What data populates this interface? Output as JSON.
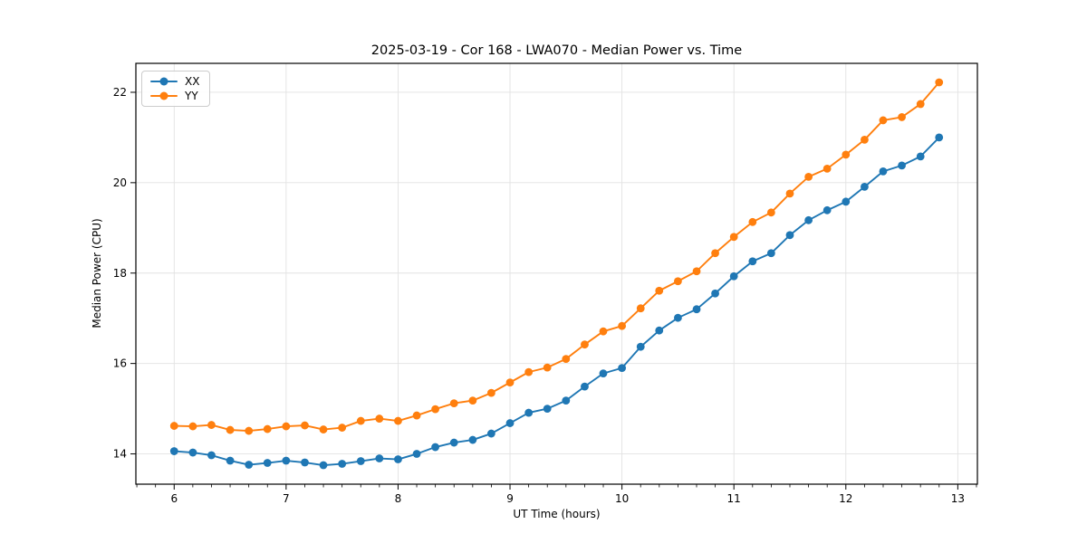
{
  "chart_data": {
    "type": "line",
    "title": "2025-03-19 - Cor 168 - LWA070 - Median Power vs. Time",
    "xlabel": "UT Time (hours)",
    "ylabel": "Median Power (CPU)",
    "xlim": [
      5.658,
      13.175
    ],
    "ylim": [
      13.33,
      22.64
    ],
    "x_major_ticks": [
      6,
      7,
      8,
      9,
      10,
      11,
      12,
      13
    ],
    "x_minor_tick_step": 0.1667,
    "y_major_ticks": [
      14,
      16,
      18,
      20,
      22
    ],
    "grid": true,
    "grid_color": "#e2e2e2",
    "spine_color": "#000000",
    "legend_position": "upper left",
    "marker": "circle",
    "x": [
      6.0,
      6.167,
      6.333,
      6.5,
      6.667,
      6.833,
      7.0,
      7.167,
      7.333,
      7.5,
      7.667,
      7.833,
      8.0,
      8.167,
      8.333,
      8.5,
      8.667,
      8.833,
      9.0,
      9.167,
      9.333,
      9.5,
      9.667,
      9.833,
      10.0,
      10.167,
      10.333,
      10.5,
      10.667,
      10.833,
      11.0,
      11.167,
      11.333,
      11.5,
      11.667,
      11.833,
      12.0,
      12.167,
      12.333,
      12.5,
      12.667,
      12.833
    ],
    "series": [
      {
        "name": "XX",
        "color": "#1f77b4",
        "values": [
          14.06,
          14.03,
          13.97,
          13.85,
          13.76,
          13.8,
          13.85,
          13.81,
          13.75,
          13.78,
          13.84,
          13.9,
          13.88,
          14.0,
          14.15,
          14.25,
          14.31,
          14.45,
          14.68,
          14.91,
          15.0,
          15.18,
          15.49,
          15.78,
          15.9,
          16.37,
          16.73,
          17.01,
          17.2,
          17.55,
          17.93,
          18.26,
          18.44,
          18.84,
          19.17,
          19.39,
          19.58,
          19.91,
          20.25,
          20.38,
          20.58,
          21.0
        ]
      },
      {
        "name": "YY",
        "color": "#ff7f0e",
        "values": [
          14.62,
          14.61,
          14.64,
          14.53,
          14.51,
          14.55,
          14.61,
          14.63,
          14.54,
          14.58,
          14.73,
          14.78,
          14.73,
          14.85,
          14.99,
          15.12,
          15.18,
          15.35,
          15.58,
          15.81,
          15.91,
          16.1,
          16.42,
          16.71,
          16.83,
          17.22,
          17.61,
          17.82,
          18.04,
          18.44,
          18.8,
          19.13,
          19.34,
          19.76,
          20.13,
          20.31,
          20.62,
          20.95,
          21.38,
          21.45,
          21.74,
          22.22
        ]
      }
    ]
  }
}
